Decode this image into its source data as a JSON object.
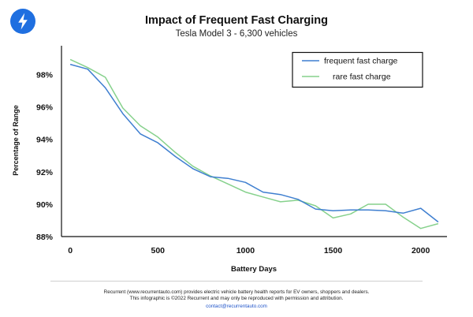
{
  "header": {
    "title": "Impact of Frequent Fast Charging",
    "subtitle": "Tesla Model 3 - 6,300 vehicles"
  },
  "logo": {
    "icon": "lightning-bolt-icon",
    "color": "#1f6fe0"
  },
  "chart_data": {
    "type": "line",
    "xlabel": "Battery Days",
    "ylabel": "Percentage of Range",
    "xlim": [
      -50,
      2150
    ],
    "ylim": [
      88,
      99.8
    ],
    "x_ticks": [
      0,
      500,
      1000,
      1500,
      2000
    ],
    "y_ticks": [
      88,
      90,
      92,
      94,
      96,
      98
    ],
    "y_tick_labels": [
      "88%",
      "90%",
      "92%",
      "94%",
      "96%",
      "98%"
    ],
    "grid": false,
    "legend": {
      "position": "top-right"
    },
    "series": [
      {
        "name": "frequent fast charge",
        "color": "#3f7fd0",
        "x": [
          0,
          100,
          200,
          300,
          400,
          500,
          600,
          700,
          800,
          900,
          1000,
          1100,
          1200,
          1300,
          1400,
          1500,
          1600,
          1700,
          1800,
          1900,
          2000,
          2100
        ],
        "y": [
          98.65,
          98.35,
          97.2,
          95.6,
          94.35,
          93.8,
          92.95,
          92.2,
          91.7,
          91.6,
          91.35,
          90.75,
          90.6,
          90.3,
          89.7,
          89.6,
          89.65,
          89.65,
          89.6,
          89.45,
          89.75,
          88.9
        ]
      },
      {
        "name": "rare fast charge",
        "color": "#86d18c",
        "x": [
          0,
          100,
          200,
          300,
          400,
          500,
          600,
          700,
          800,
          900,
          1000,
          1100,
          1200,
          1300,
          1400,
          1500,
          1600,
          1700,
          1800,
          1900,
          2000,
          2100
        ],
        "y": [
          98.95,
          98.45,
          97.85,
          95.95,
          94.85,
          94.15,
          93.2,
          92.35,
          91.75,
          91.25,
          90.75,
          90.45,
          90.15,
          90.25,
          89.9,
          89.15,
          89.4,
          90.0,
          90.0,
          89.2,
          88.5,
          88.8
        ]
      }
    ]
  },
  "footer": {
    "line1": "Recurrent (www.recurrentauto.com) provides electric vehicle battery health reports for EV owners, shoppers and dealers.",
    "line2": "This infographic is ©2022 Recurrent and may only be reproduced with permission and attribution.",
    "contact": "contact@recurrentauto.com"
  }
}
